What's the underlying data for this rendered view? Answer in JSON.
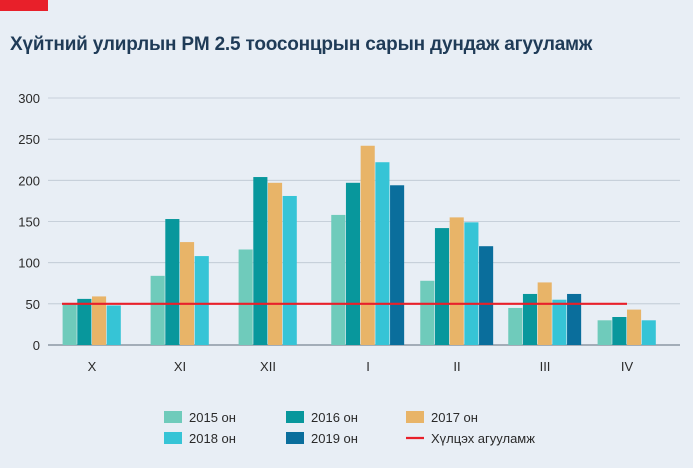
{
  "chart_data": {
    "type": "bar",
    "title": "Хүйтний улирлын PM 2.5 тоосонцрын сарын дундаж агууламж",
    "categories": [
      "X",
      "XI",
      "XII",
      "I",
      "II",
      "III",
      "IV"
    ],
    "series": [
      {
        "name": "2015 он",
        "color": "#6fcbbb",
        "values": [
          50,
          84,
          116,
          158,
          78,
          45,
          30
        ]
      },
      {
        "name": "2016 он",
        "color": "#08979c",
        "values": [
          56,
          153,
          204,
          197,
          142,
          62,
          34
        ]
      },
      {
        "name": "2017 он",
        "color": "#e8b468",
        "values": [
          59,
          125,
          197,
          242,
          155,
          76,
          43
        ]
      },
      {
        "name": "2018 он",
        "color": "#36c4d6",
        "values": [
          48,
          108,
          181,
          222,
          149,
          55,
          30
        ]
      },
      {
        "name": "2019 он",
        "color": "#0a6e9c",
        "values": [
          null,
          null,
          null,
          194,
          120,
          62,
          null
        ]
      }
    ],
    "reference_line": {
      "name": "Хүлцэх агууламж",
      "value": 50,
      "color": "#e8202a"
    },
    "ylim": [
      0,
      300
    ],
    "yticks": [
      0,
      50,
      100,
      150,
      200,
      250,
      300
    ],
    "grid": true,
    "legend_position": "bottom",
    "xlabel": "",
    "ylabel": ""
  }
}
